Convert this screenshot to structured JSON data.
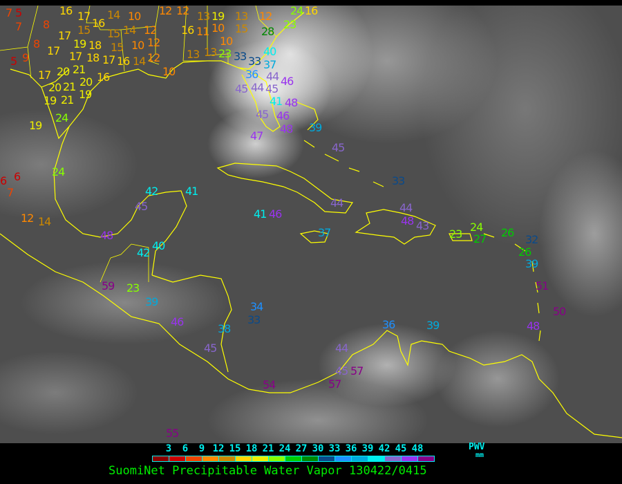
{
  "caption": "SuomiNet Precipitable Water Vapor 130422/0415",
  "legend": {
    "unit_top": "PWV",
    "unit_bottom": "mm",
    "ticks": [
      "3",
      "6",
      "9",
      "12",
      "15",
      "18",
      "21",
      "24",
      "27",
      "30",
      "33",
      "36",
      "39",
      "42",
      "45",
      "48"
    ],
    "colors": [
      "#8b0000",
      "#cc0000",
      "#ee4400",
      "#ff8800",
      "#cc8800",
      "#ffd700",
      "#eeee00",
      "#88ff00",
      "#00cc00",
      "#008800",
      "#0a4a8a",
      "#1e90ff",
      "#00aadd",
      "#00eeee",
      "#8866cc",
      "#9933ee",
      "#880088"
    ]
  },
  "coastline_color": "#ffff00",
  "observations": [
    7,
    5,
    7,
    8,
    8,
    5,
    9,
    16,
    17,
    17,
    19,
    18,
    17,
    16,
    15,
    14,
    15,
    14,
    12,
    10,
    12,
    12,
    13,
    19,
    13,
    12,
    15,
    16,
    11,
    10,
    10,
    15,
    10,
    12,
    17,
    21,
    18,
    17,
    16,
    14,
    12,
    10,
    13,
    13,
    23,
    17,
    20,
    20,
    21,
    20,
    16,
    19,
    21,
    19,
    19,
    24,
    24,
    23,
    28,
    16,
    33,
    33,
    36,
    37,
    40,
    44,
    44,
    46,
    45,
    45,
    41,
    48,
    46,
    45,
    48,
    47,
    39,
    45,
    6,
    6,
    7,
    12,
    14,
    24,
    42,
    41,
    45,
    48,
    40,
    42,
    59,
    23,
    39,
    46,
    38,
    45,
    34,
    33,
    41,
    46,
    33,
    44,
    37,
    44,
    48,
    43,
    23,
    24,
    27,
    26,
    32,
    26,
    39,
    51,
    50,
    48,
    36,
    39,
    44,
    45,
    57,
    54,
    57,
    55
  ]
}
